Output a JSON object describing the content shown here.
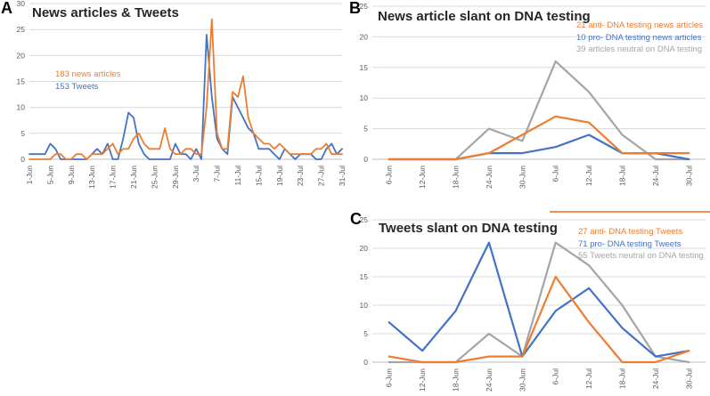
{
  "figure": {
    "background": "#FFFFFF",
    "accent_orange": "#ED7D31",
    "accent_blue": "#4472C4",
    "accent_gray": "#A5A5A5"
  },
  "panels": {
    "a": {
      "letter": "A",
      "title": "News articles & Tweets",
      "legend": [
        {
          "text": "183 news articles",
          "color": "#ED7D31"
        },
        {
          "text": "153 Tweets",
          "color": "#4472C4"
        }
      ]
    },
    "b": {
      "letter": "B",
      "title": "News article slant on DNA testing",
      "legend": [
        {
          "text": "21 anti- DNA testing news articles",
          "color": "#ED7D31"
        },
        {
          "text": "10 pro- DNA testing news articles",
          "color": "#4472C4"
        },
        {
          "text": "39 articles neutral on DNA testing",
          "color": "#A5A5A5"
        }
      ]
    },
    "c": {
      "letter": "C",
      "title": "Tweets slant on DNA testing",
      "legend": [
        {
          "text": "27 anti- DNA testing Tweets",
          "color": "#ED7D31"
        },
        {
          "text": "71 pro- DNA testing Tweets",
          "color": "#4472C4"
        },
        {
          "text": "55 Tweets neutral on DNA testing",
          "color": "#A5A5A5"
        }
      ]
    }
  },
  "chart_data": [
    {
      "id": "news-articles-and-tweets",
      "type": "line",
      "title": "News articles & Tweets",
      "xlabel": "",
      "ylabel": "",
      "ylim": [
        0,
        30
      ],
      "ytick_step": 5,
      "x_tick_every": 4,
      "point_align": "on",
      "grid": true,
      "legend_position": "inside-top-left",
      "categories": [
        "1-Jun",
        "2-Jun",
        "3-Jun",
        "4-Jun",
        "5-Jun",
        "6-Jun",
        "7-Jun",
        "8-Jun",
        "9-Jun",
        "10-Jun",
        "11-Jun",
        "12-Jun",
        "13-Jun",
        "14-Jun",
        "15-Jun",
        "16-Jun",
        "17-Jun",
        "18-Jun",
        "19-Jun",
        "20-Jun",
        "21-Jun",
        "22-Jun",
        "23-Jun",
        "24-Jun",
        "25-Jun",
        "26-Jun",
        "27-Jun",
        "28-Jun",
        "29-Jun",
        "30-Jun",
        "1-Jul",
        "2-Jul",
        "3-Jul",
        "4-Jul",
        "5-Jul",
        "6-Jul",
        "7-Jul",
        "8-Jul",
        "9-Jul",
        "10-Jul",
        "11-Jul",
        "12-Jul",
        "13-Jul",
        "14-Jul",
        "15-Jul",
        "16-Jul",
        "17-Jul",
        "18-Jul",
        "19-Jul",
        "20-Jul",
        "21-Jul",
        "22-Jul",
        "23-Jul",
        "24-Jul",
        "25-Jul",
        "26-Jul",
        "27-Jul",
        "28-Jul",
        "29-Jul",
        "30-Jul",
        "31-Jul"
      ],
      "series": [
        {
          "name": "153 Tweets",
          "color": "#4472C4",
          "total": 153,
          "values": [
            1,
            1,
            1,
            1,
            3,
            2,
            0,
            0,
            0,
            0,
            0,
            0,
            1,
            2,
            1,
            3,
            0,
            0,
            4,
            9,
            8,
            3,
            1,
            0,
            0,
            0,
            0,
            0,
            3,
            1,
            1,
            0,
            2,
            0,
            24,
            12,
            4,
            2,
            1,
            12,
            10,
            8,
            6,
            5,
            2,
            2,
            2,
            1,
            0,
            2,
            1,
            0,
            1,
            1,
            1,
            0,
            0,
            2,
            3,
            1,
            2
          ]
        },
        {
          "name": "183 news articles",
          "color": "#ED7D31",
          "total": 183,
          "values": [
            0,
            0,
            0,
            0,
            0,
            1,
            1,
            0,
            0,
            1,
            1,
            0,
            1,
            1,
            1,
            2,
            3,
            1,
            2,
            2,
            4,
            5,
            3,
            2,
            2,
            2,
            6,
            2,
            1,
            1,
            2,
            2,
            1,
            1,
            10,
            27,
            5,
            2,
            2,
            13,
            12,
            16,
            8,
            5,
            4,
            3,
            3,
            2,
            3,
            2,
            1,
            1,
            1,
            1,
            1,
            2,
            2,
            3,
            1,
            1,
            1
          ]
        }
      ]
    },
    {
      "id": "news-article-slant-on-dna-testing",
      "type": "line",
      "title": "News article slant on DNA testing",
      "xlabel": "",
      "ylabel": "",
      "ylim": [
        0,
        25
      ],
      "ytick_step": 5,
      "x_tick_every": 1,
      "point_align": "between",
      "grid": true,
      "legend_position": "inside-top-right",
      "categories": [
        "6-Jun",
        "12-Jun",
        "18-Jun",
        "24-Jun",
        "30-Jun",
        "6-Jul",
        "12-Jul",
        "18-Jul",
        "24-Jul",
        "30-Jul"
      ],
      "series": [
        {
          "name": "39 articles neutral on DNA testing",
          "color": "#A5A5A5",
          "total": 39,
          "values": [
            0,
            0,
            0,
            5,
            3,
            16,
            11,
            4,
            0,
            0
          ]
        },
        {
          "name": "10 pro- DNA testing news articles",
          "color": "#4472C4",
          "total": 10,
          "values": [
            0,
            0,
            0,
            1,
            1,
            2,
            4,
            1,
            1,
            0
          ]
        },
        {
          "name": "21 anti- DNA testing news articles",
          "color": "#ED7D31",
          "total": 21,
          "values": [
            0,
            0,
            0,
            1,
            4,
            7,
            6,
            1,
            1,
            1
          ]
        }
      ]
    },
    {
      "id": "tweets-slant-on-dna-testing",
      "type": "line",
      "title": "Tweets slant on DNA testing",
      "xlabel": "",
      "ylabel": "",
      "ylim": [
        0,
        25
      ],
      "ytick_step": 5,
      "x_tick_every": 1,
      "point_align": "between",
      "grid": true,
      "legend_position": "inside-top-right",
      "categories": [
        "6-Jun",
        "12-Jun",
        "18-Jun",
        "24-Jun",
        "30-Jun",
        "6-Jul",
        "12-Jul",
        "18-Jul",
        "24-Jul",
        "30-Jul"
      ],
      "series": [
        {
          "name": "55 Tweets neutral on DNA testing",
          "color": "#A5A5A5",
          "total": 55,
          "values": [
            0,
            0,
            0,
            5,
            1,
            21,
            17,
            10,
            1,
            0
          ]
        },
        {
          "name": "71 pro- DNA testing Tweets",
          "color": "#4472C4",
          "total": 71,
          "values": [
            7,
            2,
            9,
            21,
            1,
            9,
            13,
            6,
            1,
            2
          ]
        },
        {
          "name": "27 anti- DNA testing Tweets",
          "color": "#ED7D31",
          "total": 27,
          "values": [
            1,
            0,
            0,
            1,
            1,
            15,
            7,
            0,
            0,
            2
          ]
        }
      ]
    }
  ]
}
